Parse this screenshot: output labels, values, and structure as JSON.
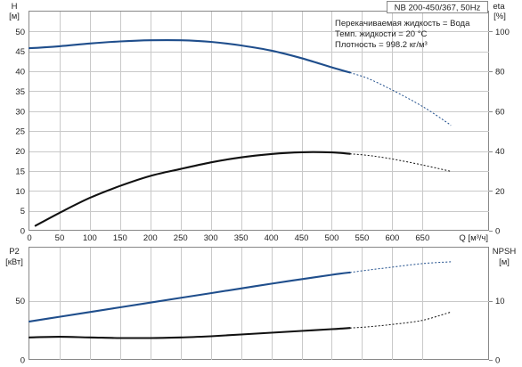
{
  "chart_data": [
    {
      "type": "line",
      "panel": "top",
      "title_box": "NB 200-450/367, 50Hz",
      "annotations": [
        "Перекачиваемая жидкость = Вода",
        "Темп. жидкости = 20 °C",
        "Плотность = 998.2 кг/м³"
      ],
      "xlabel": "Q [м³/ч]",
      "xlim": [
        0,
        760
      ],
      "xticks": [
        0,
        50,
        100,
        150,
        200,
        250,
        300,
        350,
        400,
        450,
        500,
        550,
        600,
        650
      ],
      "y_left": {
        "label_line1": "H",
        "label_line2": "[м]",
        "lim": [
          0,
          55
        ],
        "ticks": [
          0,
          5,
          10,
          15,
          20,
          25,
          30,
          35,
          40,
          45,
          50
        ]
      },
      "y_right": {
        "label_line1": "eta",
        "label_line2": "[%]",
        "lim": [
          0,
          110
        ],
        "ticks": [
          0,
          20,
          40,
          60,
          80,
          100
        ]
      },
      "grid": true,
      "series": [
        {
          "axis": "left",
          "color": "#1f4e8c",
          "points": [
            [
              0,
              45.8
            ],
            [
              50,
              46.3
            ],
            [
              100,
              47.0
            ],
            [
              150,
              47.5
            ],
            [
              200,
              47.8
            ],
            [
              250,
              47.8
            ],
            [
              300,
              47.4
            ],
            [
              350,
              46.5
            ],
            [
              400,
              45.2
            ],
            [
              450,
              43.3
            ],
            [
              500,
              41.0
            ],
            [
              530,
              39.7
            ]
          ],
          "extended": [
            [
              530,
              39.7
            ],
            [
              560,
              38.2
            ],
            [
              600,
              35.3
            ],
            [
              650,
              31.2
            ],
            [
              690,
              27.2
            ],
            [
              697,
              26.4
            ]
          ]
        },
        {
          "axis": "right",
          "color": "#111111",
          "points": [
            [
              10,
              2.5
            ],
            [
              50,
              9.0
            ],
            [
              100,
              16.5
            ],
            [
              150,
              22.5
            ],
            [
              200,
              27.5
            ],
            [
              250,
              31.0
            ],
            [
              300,
              34.3
            ],
            [
              350,
              36.8
            ],
            [
              400,
              38.5
            ],
            [
              450,
              39.4
            ],
            [
              500,
              39.3
            ],
            [
              530,
              38.6
            ]
          ],
          "extended": [
            [
              530,
              38.6
            ],
            [
              560,
              37.8
            ],
            [
              600,
              36.0
            ],
            [
              650,
              33.0
            ],
            [
              697,
              29.8
            ]
          ]
        }
      ]
    },
    {
      "type": "line",
      "panel": "bottom",
      "xlim": [
        0,
        760
      ],
      "xticks": [
        0,
        50,
        100,
        150,
        200,
        250,
        300,
        350,
        400,
        450,
        500,
        550,
        600,
        650
      ],
      "y_left": {
        "label_line1": "P2",
        "label_line2": "[кВт]",
        "lim": [
          0,
          95
        ],
        "ticks": [
          0,
          50
        ]
      },
      "y_right": {
        "label_line1": "NPSH",
        "label_line2": "[м]",
        "lim": [
          0,
          19
        ],
        "ticks": [
          0,
          10
        ]
      },
      "grid": true,
      "series": [
        {
          "axis": "left",
          "color": "#1f4e8c",
          "points": [
            [
              0,
              32.5
            ],
            [
              50,
              36.5
            ],
            [
              100,
              40.5
            ],
            [
              150,
              44.5
            ],
            [
              200,
              48.5
            ],
            [
              250,
              52.5
            ],
            [
              300,
              56.5
            ],
            [
              350,
              60.5
            ],
            [
              400,
              64.5
            ],
            [
              450,
              68.3
            ],
            [
              500,
              72.0
            ],
            [
              530,
              74.0
            ]
          ],
          "extended": [
            [
              530,
              74.0
            ],
            [
              560,
              76.0
            ],
            [
              600,
              78.5
            ],
            [
              650,
              81.5
            ],
            [
              697,
              83.0
            ]
          ]
        },
        {
          "axis": "right",
          "color": "#111111",
          "points": [
            [
              0,
              3.8
            ],
            [
              50,
              3.9
            ],
            [
              100,
              3.8
            ],
            [
              150,
              3.7
            ],
            [
              200,
              3.7
            ],
            [
              250,
              3.8
            ],
            [
              300,
              4.0
            ],
            [
              350,
              4.3
            ],
            [
              400,
              4.6
            ],
            [
              450,
              4.9
            ],
            [
              500,
              5.2
            ],
            [
              530,
              5.4
            ]
          ],
          "extended": [
            [
              530,
              5.4
            ],
            [
              560,
              5.6
            ],
            [
              600,
              6.0
            ],
            [
              650,
              6.7
            ],
            [
              697,
              8.1
            ]
          ]
        }
      ]
    }
  ]
}
